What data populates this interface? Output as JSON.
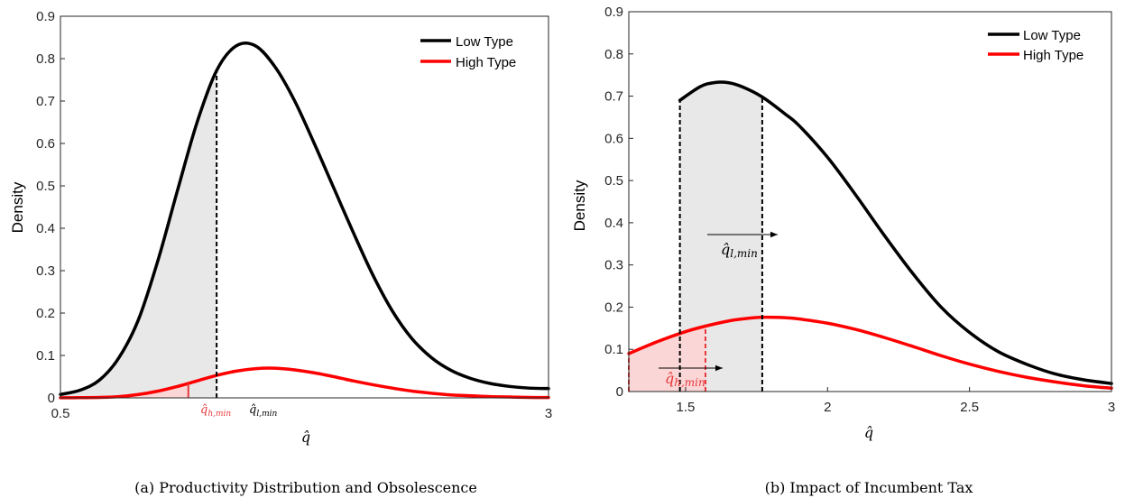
{
  "chart_data": [
    {
      "type": "line",
      "caption": "(a) Productivity Distribution and Obsolescence",
      "xlabel": "q̂",
      "ylabel": "Density",
      "xlim": [
        0.5,
        3
      ],
      "ylim": [
        0,
        0.9
      ],
      "x_ticks": [
        0.5,
        3
      ],
      "y_ticks": [
        0,
        0.1,
        0.2,
        0.3,
        0.4,
        0.5,
        0.6,
        0.7,
        0.8,
        0.9
      ],
      "y_tick_labels": [
        "0",
        "0.1",
        "0.2",
        "0.3",
        "0.4",
        "0.5",
        "0.6",
        "0.7",
        "0.8",
        "0.9"
      ],
      "x_tick_labels": [
        "0.5",
        "3"
      ],
      "legend": {
        "placement": "top-right",
        "entries": [
          "Low Type",
          "High Type"
        ]
      },
      "series": [
        {
          "name": "Low Type",
          "color": "#000000",
          "x": [
            0.5,
            0.6,
            0.7,
            0.8,
            0.9,
            1.0,
            1.1,
            1.2,
            1.3,
            1.4,
            1.5,
            1.6,
            1.7,
            1.8,
            1.9,
            2.0,
            2.1,
            2.2,
            2.3,
            2.4,
            2.5,
            2.6,
            2.7,
            2.8,
            2.9,
            3.0
          ],
          "y": [
            0.008,
            0.018,
            0.042,
            0.095,
            0.185,
            0.325,
            0.49,
            0.65,
            0.772,
            0.83,
            0.83,
            0.78,
            0.7,
            0.6,
            0.495,
            0.39,
            0.29,
            0.205,
            0.14,
            0.095,
            0.065,
            0.046,
            0.034,
            0.027,
            0.023,
            0.022
          ]
        },
        {
          "name": "High Type",
          "color": "#ff0000",
          "x": [
            0.5,
            0.6,
            0.7,
            0.8,
            0.9,
            1.0,
            1.1,
            1.2,
            1.3,
            1.4,
            1.5,
            1.6,
            1.7,
            1.8,
            1.9,
            2.0,
            2.1,
            2.2,
            2.3,
            2.4,
            2.5,
            2.6,
            2.7,
            2.8,
            2.9,
            3.0
          ],
          "y": [
            0.0002,
            0.0005,
            0.001,
            0.003,
            0.008,
            0.016,
            0.027,
            0.04,
            0.053,
            0.063,
            0.069,
            0.07,
            0.066,
            0.059,
            0.05,
            0.04,
            0.031,
            0.023,
            0.016,
            0.011,
            0.007,
            0.005,
            0.003,
            0.002,
            0.001,
            0.0008
          ]
        }
      ],
      "thresholds": [
        {
          "label": "q̂",
          "sub": "l,min",
          "x": 1.3,
          "color": "#000000"
        },
        {
          "label": "q̂",
          "sub": "h,min",
          "x": 1.155,
          "color": "#e8383a"
        }
      ]
    },
    {
      "type": "line",
      "caption": "(b) Impact of Incumbent Tax",
      "xlabel": "q̂",
      "ylabel": "Density",
      "xlim": [
        1.3,
        3
      ],
      "ylim": [
        0,
        0.9
      ],
      "x_ticks": [
        1.5,
        2,
        2.5,
        3
      ],
      "x_tick_labels": [
        "1.5",
        "2",
        "2.5",
        "3"
      ],
      "y_ticks": [
        0,
        0.1,
        0.2,
        0.3,
        0.4,
        0.5,
        0.6,
        0.7,
        0.8,
        0.9
      ],
      "y_tick_labels": [
        "0",
        "0.1",
        "0.2",
        "0.3",
        "0.4",
        "0.5",
        "0.6",
        "0.7",
        "0.8",
        "0.9"
      ],
      "legend": {
        "placement": "top-right",
        "entries": [
          "Low Type",
          "High Type"
        ]
      },
      "series": [
        {
          "name": "Low Type",
          "color": "#000000",
          "x": [
            1.48,
            1.55,
            1.6,
            1.65,
            1.7,
            1.77,
            1.85,
            1.9,
            2.0,
            2.1,
            2.2,
            2.3,
            2.4,
            2.5,
            2.6,
            2.7,
            2.8,
            2.9,
            3.0
          ],
          "y": [
            0.69,
            0.722,
            0.732,
            0.732,
            0.722,
            0.698,
            0.658,
            0.63,
            0.555,
            0.465,
            0.37,
            0.28,
            0.2,
            0.14,
            0.095,
            0.065,
            0.042,
            0.028,
            0.019
          ]
        },
        {
          "name": "High Type",
          "color": "#ff0000",
          "x": [
            1.3,
            1.4,
            1.5,
            1.57,
            1.65,
            1.7,
            1.77,
            1.85,
            1.9,
            2.0,
            2.1,
            2.2,
            2.3,
            2.4,
            2.5,
            2.6,
            2.7,
            2.8,
            2.9,
            3.0
          ],
          "y": [
            0.09,
            0.118,
            0.142,
            0.155,
            0.167,
            0.172,
            0.176,
            0.175,
            0.172,
            0.162,
            0.147,
            0.128,
            0.107,
            0.085,
            0.065,
            0.048,
            0.034,
            0.023,
            0.014,
            0.008
          ]
        }
      ],
      "thresholds": [
        {
          "label": "q̂",
          "sub": "l,min",
          "x_from": 1.48,
          "x": 1.77,
          "color": "#000000"
        },
        {
          "label": "q̂",
          "sub": "h,min",
          "x_from": 1.3,
          "x": 1.57,
          "color": "#e8383a"
        }
      ]
    }
  ]
}
